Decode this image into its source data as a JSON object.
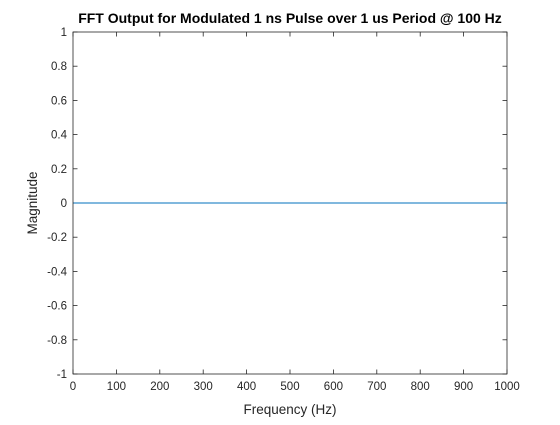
{
  "chart_data": {
    "type": "line",
    "title": "FFT Output for Modulated 1 ns Pulse over 1 us Period @ 100 Hz",
    "xlabel": "Frequency (Hz)",
    "ylabel": "Magnitude",
    "xlim": [
      0,
      1000
    ],
    "ylim": [
      -1,
      1
    ],
    "x_ticks": [
      0,
      100,
      200,
      300,
      400,
      500,
      600,
      700,
      800,
      900,
      1000
    ],
    "x_tick_labels": [
      "0",
      "100",
      "200",
      "300",
      "400",
      "500",
      "600",
      "700",
      "800",
      "900",
      "1000"
    ],
    "y_ticks": [
      -1,
      -0.8,
      -0.6,
      -0.4,
      -0.2,
      0,
      0.2,
      0.4,
      0.6,
      0.8,
      1
    ],
    "y_tick_labels": [
      "-1",
      "-0.8",
      "-0.6",
      "-0.4",
      "-0.2",
      "0",
      "0.2",
      "0.4",
      "0.6",
      "0.8",
      "1"
    ],
    "grid": false,
    "series": [
      {
        "color": "#0072bd",
        "x": [
          0,
          1000
        ],
        "y": [
          0,
          0
        ]
      }
    ]
  }
}
